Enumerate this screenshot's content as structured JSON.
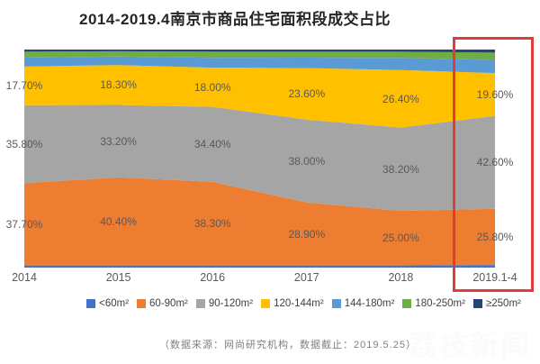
{
  "title": "2014-2019.4南京市商品住宅面积段成交占比",
  "footer": {
    "text": "（数据来源：网尚研究机构，数据截止：2019.5.25）"
  },
  "watermark": "荔枝新闻",
  "highlight_box": {
    "color": "#e23b3b",
    "highlighted_category": "2019.1-4"
  },
  "chart_data": {
    "type": "area",
    "stacked": true,
    "title": "2014-2019.4南京市商品住宅面积段成交占比",
    "categories": [
      "2014",
      "2015",
      "2016",
      "2017",
      "2018",
      "2019.1-4"
    ],
    "xlabel": "",
    "ylabel": "",
    "ylim": [
      0,
      100
    ],
    "grid": false,
    "legend_position": "bottom",
    "label_color": "#595959",
    "series": [
      {
        "name": "<60m²",
        "color": "#4472C4",
        "values": [
          1.0,
          1.0,
          1.0,
          1.0,
          1.0,
          1.2
        ],
        "labels": null,
        "estimated": true
      },
      {
        "name": "60-90m²",
        "color": "#ED7D31",
        "values": [
          37.7,
          40.4,
          38.3,
          28.9,
          25.0,
          25.8
        ],
        "labels": [
          "37.70%",
          "40.40%",
          "38.30%",
          "28.90%",
          "25.00%",
          "25.80%"
        ],
        "estimated": false
      },
      {
        "name": "90-120m²",
        "color": "#A5A5A5",
        "values": [
          35.8,
          33.2,
          34.4,
          38.0,
          38.2,
          42.6
        ],
        "labels": [
          "35.80%",
          "33.20%",
          "34.40%",
          "38.00%",
          "38.20%",
          "42.60%"
        ],
        "estimated": false
      },
      {
        "name": "120-144m²",
        "color": "#FFC000",
        "values": [
          17.7,
          18.3,
          18.0,
          23.6,
          26.4,
          19.6
        ],
        "labels": [
          "17.70%",
          "18.30%",
          "18.00%",
          "23.60%",
          "26.40%",
          "19.60%"
        ],
        "estimated": false
      },
      {
        "name": "144-180m²",
        "color": "#5B9BD5",
        "values": [
          4.1,
          3.9,
          4.5,
          4.8,
          5.6,
          6.0
        ],
        "labels": null,
        "estimated": true
      },
      {
        "name": "180-250m²",
        "color": "#70AD47",
        "values": [
          2.7,
          2.4,
          2.8,
          2.7,
          2.8,
          3.4
        ],
        "labels": null,
        "estimated": true
      },
      {
        "name": "≥250m²",
        "color": "#264478",
        "values": [
          1.0,
          0.8,
          1.0,
          1.0,
          1.0,
          1.4
        ],
        "labels": null,
        "estimated": true
      }
    ]
  }
}
